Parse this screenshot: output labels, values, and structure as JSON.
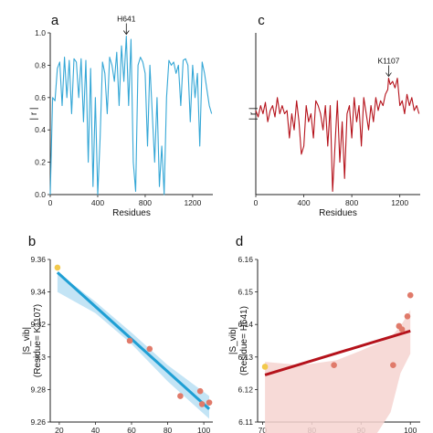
{
  "chart_data": [
    {
      "panel": "a",
      "type": "line",
      "ylabel": "| r |",
      "xlabel": "Residues",
      "xlim": [
        0,
        1370
      ],
      "ylim": [
        0,
        1.0
      ],
      "xticks": [
        0,
        400,
        800,
        1200
      ],
      "yticks": [
        0.0,
        0.2,
        0.4,
        0.6,
        0.8,
        1.0
      ],
      "ytick_labels": [
        "0.0",
        "0.2",
        "0.4",
        "0.6",
        "0.8",
        "1.0"
      ],
      "color": "#35a7d6",
      "annotation": {
        "label": "H641",
        "x": 641,
        "y": 0.98
      },
      "series": [
        {
          "x": [
            0,
            20,
            40,
            60,
            80,
            100,
            120,
            140,
            160,
            180,
            200,
            220,
            240,
            260,
            280,
            300,
            320,
            340,
            360,
            380,
            400,
            420,
            440,
            460,
            480,
            500,
            520,
            540,
            560,
            580,
            600,
            620,
            641,
            660,
            680,
            700,
            720,
            740,
            760,
            780,
            800,
            820,
            840,
            860,
            880,
            900,
            920,
            940,
            960,
            980,
            1000,
            1020,
            1040,
            1060,
            1080,
            1100,
            1120,
            1140,
            1160,
            1180,
            1200,
            1220,
            1240,
            1260,
            1280,
            1300,
            1320,
            1340,
            1360
          ],
          "y": [
            0.0,
            0.6,
            0.58,
            0.78,
            0.82,
            0.55,
            0.85,
            0.6,
            0.83,
            0.5,
            0.84,
            0.82,
            0.6,
            0.84,
            0.45,
            0.83,
            0.2,
            0.78,
            0.05,
            0.6,
            0.0,
            0.35,
            0.82,
            0.75,
            0.5,
            0.85,
            0.8,
            0.7,
            0.88,
            0.55,
            0.92,
            0.7,
            0.98,
            0.55,
            0.96,
            0.2,
            0.02,
            0.8,
            0.85,
            0.82,
            0.75,
            0.3,
            0.8,
            0.5,
            0.2,
            0.6,
            0.05,
            0.3,
            0.0,
            0.6,
            0.83,
            0.8,
            0.82,
            0.75,
            0.8,
            0.55,
            0.83,
            0.84,
            0.8,
            0.45,
            0.8,
            0.6,
            0.75,
            0.3,
            0.82,
            0.75,
            0.65,
            0.55,
            0.5
          ]
        }
      ]
    },
    {
      "panel": "c",
      "type": "line",
      "ylabel": "| r |",
      "xlabel": "Residues",
      "xlim": [
        0,
        1370
      ],
      "ylim": [
        0,
        1.0
      ],
      "xticks": [
        0,
        400,
        800,
        1200
      ],
      "color": "#b5121b",
      "annotation": {
        "label": "K1107",
        "x": 1107,
        "y": 0.72
      },
      "series": [
        {
          "x": [
            0,
            20,
            40,
            60,
            80,
            100,
            120,
            140,
            160,
            180,
            200,
            220,
            240,
            260,
            280,
            300,
            320,
            340,
            360,
            380,
            400,
            420,
            440,
            460,
            480,
            500,
            520,
            540,
            560,
            580,
            600,
            620,
            640,
            660,
            680,
            700,
            720,
            740,
            760,
            780,
            800,
            820,
            840,
            860,
            880,
            900,
            920,
            940,
            960,
            980,
            1000,
            1020,
            1040,
            1060,
            1080,
            1100,
            1107,
            1120,
            1140,
            1160,
            1180,
            1200,
            1220,
            1240,
            1260,
            1280,
            1300,
            1320,
            1340,
            1360
          ],
          "y": [
            0.52,
            0.48,
            0.55,
            0.5,
            0.57,
            0.45,
            0.52,
            0.55,
            0.48,
            0.6,
            0.5,
            0.55,
            0.5,
            0.52,
            0.35,
            0.5,
            0.4,
            0.58,
            0.45,
            0.25,
            0.3,
            0.55,
            0.45,
            0.5,
            0.35,
            0.58,
            0.55,
            0.5,
            0.4,
            0.55,
            0.3,
            0.55,
            0.02,
            0.3,
            0.58,
            0.2,
            0.45,
            0.1,
            0.5,
            0.55,
            0.35,
            0.6,
            0.45,
            0.55,
            0.3,
            0.6,
            0.5,
            0.4,
            0.55,
            0.45,
            0.6,
            0.52,
            0.58,
            0.55,
            0.62,
            0.65,
            0.72,
            0.68,
            0.7,
            0.66,
            0.72,
            0.55,
            0.58,
            0.5,
            0.62,
            0.55,
            0.6,
            0.52,
            0.55,
            0.5
          ]
        }
      ]
    },
    {
      "panel": "b",
      "type": "scatter",
      "ylabel": "|S_vib|",
      "ylabel_sub": "(Residue= K1107)",
      "xlim": [
        15,
        105
      ],
      "ylim": [
        9.26,
        9.36
      ],
      "xticks": [
        20,
        40,
        60,
        80,
        100
      ],
      "yticks": [
        9.26,
        9.28,
        9.3,
        9.32,
        9.34,
        9.36
      ],
      "ytick_labels": [
        "9.26",
        "9.28",
        "9.3",
        "9.32",
        "9.34",
        "9.36"
      ],
      "line_color": "#1f9fd4",
      "band_color": "#b8dff3",
      "points": [
        {
          "x": 19,
          "y": 9.355,
          "color": "#f2c94c"
        },
        {
          "x": 59,
          "y": 9.31,
          "color": "#e07a6a"
        },
        {
          "x": 70,
          "y": 9.305,
          "color": "#e07a6a"
        },
        {
          "x": 87,
          "y": 9.276,
          "color": "#e07a6a"
        },
        {
          "x": 98,
          "y": 9.279,
          "color": "#e07a6a"
        },
        {
          "x": 99,
          "y": 9.271,
          "color": "#e07a6a"
        },
        {
          "x": 103,
          "y": 9.272,
          "color": "#e07a6a"
        }
      ],
      "fit": {
        "x": [
          19,
          103
        ],
        "y": [
          9.352,
          9.268
        ]
      },
      "band": {
        "x": [
          19,
          40,
          60,
          80,
          103
        ],
        "upper": [
          9.352,
          9.334,
          9.315,
          9.295,
          9.276
        ],
        "lower": [
          9.34,
          9.327,
          9.308,
          9.285,
          9.262
        ]
      }
    },
    {
      "panel": "d",
      "type": "scatter",
      "ylabel": "|S_vib|",
      "ylabel_sub": "(Residue= H641)",
      "xlim": [
        69,
        102
      ],
      "ylim": [
        6.11,
        6.16
      ],
      "xticks": [
        70,
        80,
        90,
        100
      ],
      "yticks": [
        6.11,
        6.12,
        6.13,
        6.14,
        6.15,
        6.16
      ],
      "ytick_labels": [
        "6.11",
        "6.12",
        "6.13",
        "6.14",
        "6.15",
        "6.16"
      ],
      "line_color": "#b5121b",
      "band_color": "#f6d3d0",
      "points": [
        {
          "x": 70.5,
          "y": 6.127,
          "color": "#f2c94c"
        },
        {
          "x": 84.5,
          "y": 6.1275,
          "color": "#e07a6a"
        },
        {
          "x": 96.5,
          "y": 6.1275,
          "color": "#e07a6a"
        },
        {
          "x": 97.7,
          "y": 6.1395,
          "color": "#e07a6a"
        },
        {
          "x": 98.3,
          "y": 6.1385,
          "color": "#e07a6a"
        },
        {
          "x": 99.4,
          "y": 6.1425,
          "color": "#e07a6a"
        },
        {
          "x": 100,
          "y": 6.149,
          "color": "#e07a6a"
        }
      ],
      "fit": {
        "x": [
          70.5,
          100
        ],
        "y": [
          6.1245,
          6.138
        ]
      },
      "band": {
        "x": [
          70.5,
          78,
          85,
          90,
          93,
          96,
          98,
          100
        ],
        "upper": [
          6.1285,
          6.1275,
          6.129,
          6.132,
          6.134,
          6.136,
          6.1395,
          6.1445
        ],
        "lower": [
          6.106,
          6.106,
          6.106,
          6.106,
          6.106,
          6.113,
          6.125,
          6.131
        ]
      }
    }
  ]
}
